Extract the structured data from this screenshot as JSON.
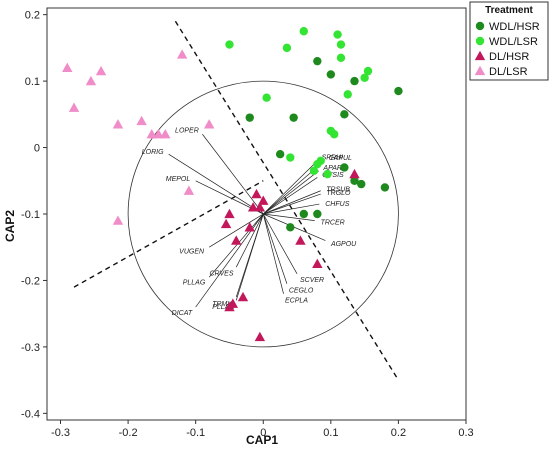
{
  "chart_data": {
    "type": "scatter",
    "xlabel": "CAP1",
    "ylabel": "CAP2",
    "xlim": [
      -0.32,
      0.3
    ],
    "ylim": [
      -0.41,
      0.21
    ],
    "x_ticks": [
      -0.3,
      -0.2,
      -0.1,
      0,
      0.1,
      0.2,
      0.3
    ],
    "x_tick_labels": [
      "-0.3",
      "-0.2",
      "-0.1",
      "0",
      "0.1",
      "0.2",
      "0.3"
    ],
    "y_ticks": [
      -0.4,
      -0.3,
      -0.2,
      -0.1,
      0,
      0.1,
      0.2
    ],
    "y_tick_labels": [
      "-0.4",
      "-0.3",
      "-0.2",
      "-0.1",
      "0",
      "0.1",
      "0.2"
    ],
    "grid": false,
    "legend": {
      "title": "Treatment",
      "placement": "top-right",
      "entries": [
        {
          "name": "WDL/HSR",
          "marker": "circle",
          "color": "#1e8a1e"
        },
        {
          "name": "WDL/LSR",
          "marker": "circle",
          "color": "#33e433"
        },
        {
          "name": "DL/HSR",
          "marker": "triangle",
          "color": "#c2185b"
        },
        {
          "name": "DL/LSR",
          "marker": "triangle",
          "color": "#f08cc8"
        }
      ]
    },
    "circle": {
      "cx": 0.0,
      "cy": -0.1,
      "r": 0.2
    },
    "divider_lines": [
      [
        [
          -0.13,
          0.19
        ],
        [
          0.2,
          -0.35
        ]
      ],
      [
        [
          -0.28,
          -0.21
        ],
        [
          0.0,
          -0.05
        ]
      ]
    ],
    "series": [
      {
        "name": "WDL/HSR",
        "marker": "circle",
        "color": "#1e8a1e",
        "points": [
          [
            0.08,
            0.13
          ],
          [
            0.1,
            0.11
          ],
          [
            0.135,
            0.1
          ],
          [
            0.2,
            0.085
          ],
          [
            0.12,
            0.05
          ],
          [
            0.045,
            0.045
          ],
          [
            -0.02,
            0.045
          ],
          [
            0.025,
            -0.01
          ],
          [
            0.12,
            -0.03
          ],
          [
            0.135,
            -0.05
          ],
          [
            0.145,
            -0.055
          ],
          [
            0.18,
            -0.06
          ],
          [
            0.06,
            -0.1
          ],
          [
            0.08,
            -0.1
          ],
          [
            0.04,
            -0.12
          ]
        ]
      },
      {
        "name": "WDL/LSR",
        "marker": "circle",
        "color": "#33e433",
        "points": [
          [
            0.06,
            0.175
          ],
          [
            0.11,
            0.17
          ],
          [
            -0.05,
            0.155
          ],
          [
            0.115,
            0.155
          ],
          [
            0.035,
            0.15
          ],
          [
            0.115,
            0.135
          ],
          [
            0.155,
            0.115
          ],
          [
            0.15,
            0.105
          ],
          [
            0.005,
            0.075
          ],
          [
            0.125,
            0.08
          ],
          [
            0.1,
            0.025
          ],
          [
            0.105,
            0.02
          ],
          [
            0.04,
            -0.015
          ],
          [
            0.085,
            -0.02
          ],
          [
            0.08,
            -0.025
          ],
          [
            0.075,
            -0.035
          ],
          [
            0.095,
            -0.04
          ]
        ]
      },
      {
        "name": "DL/HSR",
        "marker": "triangle",
        "color": "#c2185b",
        "points": [
          [
            -0.01,
            -0.07
          ],
          [
            0.0,
            -0.08
          ],
          [
            0.135,
            -0.04
          ],
          [
            -0.005,
            -0.09
          ],
          [
            -0.015,
            -0.09
          ],
          [
            -0.05,
            -0.1
          ],
          [
            -0.055,
            -0.115
          ],
          [
            -0.02,
            -0.12
          ],
          [
            0.055,
            -0.14
          ],
          [
            -0.04,
            -0.14
          ],
          [
            0.08,
            -0.175
          ],
          [
            -0.03,
            -0.225
          ],
          [
            -0.045,
            -0.235
          ],
          [
            -0.05,
            -0.24
          ],
          [
            -0.005,
            -0.285
          ]
        ]
      },
      {
        "name": "DL/LSR",
        "marker": "triangle",
        "color": "#f08cc8",
        "points": [
          [
            -0.29,
            0.12
          ],
          [
            -0.24,
            0.115
          ],
          [
            -0.255,
            0.1
          ],
          [
            -0.12,
            0.14
          ],
          [
            -0.28,
            0.06
          ],
          [
            -0.18,
            0.04
          ],
          [
            -0.215,
            0.035
          ],
          [
            -0.08,
            0.035
          ],
          [
            -0.155,
            0.02
          ],
          [
            -0.165,
            0.02
          ],
          [
            -0.145,
            0.02
          ],
          [
            -0.11,
            -0.065
          ],
          [
            -0.215,
            -0.11
          ]
        ]
      }
    ],
    "vectors": {
      "origin": [
        0.0,
        -0.1
      ],
      "items": [
        {
          "label": "LOPER",
          "end": [
            -0.09,
            0.02
          ]
        },
        {
          "label": "LORIG",
          "end": [
            -0.14,
            -0.01
          ]
        },
        {
          "label": "MEPOL",
          "end": [
            -0.1,
            -0.05
          ]
        },
        {
          "label": "SPRHI",
          "end": [
            0.08,
            -0.02
          ]
        },
        {
          "label": "CAPUL",
          "end": [
            0.09,
            -0.02
          ]
        },
        {
          "label": "APARV",
          "end": [
            0.082,
            -0.035
          ]
        },
        {
          "label": "GYSIS",
          "end": [
            0.08,
            -0.045
          ]
        },
        {
          "label": "TRSUB",
          "end": [
            0.085,
            -0.065
          ]
        },
        {
          "label": "TRGLO",
          "end": [
            0.085,
            -0.07
          ]
        },
        {
          "label": "CHFUS",
          "end": [
            0.083,
            -0.085
          ]
        },
        {
          "label": "TRCER",
          "end": [
            0.076,
            -0.11
          ]
        },
        {
          "label": "AGPOU",
          "end": [
            0.092,
            -0.14
          ]
        },
        {
          "label": "SCVER",
          "end": [
            0.05,
            -0.19
          ]
        },
        {
          "label": "CEGLO",
          "end": [
            0.035,
            -0.205
          ]
        },
        {
          "label": "ECPLA",
          "end": [
            0.03,
            -0.22
          ]
        },
        {
          "label": "CRVES",
          "end": [
            -0.04,
            -0.18
          ]
        },
        {
          "label": "VUGEN",
          "end": [
            -0.08,
            -0.15
          ]
        },
        {
          "label": "PLLAG",
          "end": [
            -0.08,
            -0.195
          ]
        },
        {
          "label": "TRMIC",
          "end": [
            -0.04,
            -0.225
          ]
        },
        {
          "label": "PLLAN",
          "end": [
            -0.04,
            -0.23
          ]
        },
        {
          "label": "DICAT",
          "end": [
            -0.1,
            -0.24
          ]
        }
      ]
    }
  }
}
